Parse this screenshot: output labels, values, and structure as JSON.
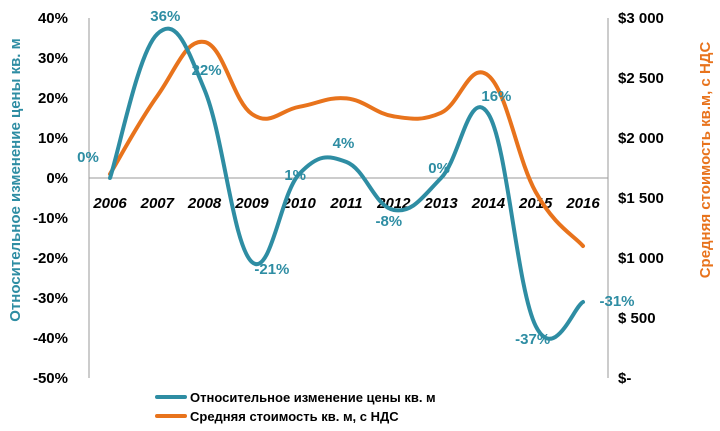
{
  "chart_data": {
    "type": "line",
    "categories": [
      "2006",
      "2007",
      "2008",
      "2009",
      "2010",
      "2011",
      "2012",
      "2013",
      "2014",
      "2015",
      "2016"
    ],
    "series": [
      {
        "name": "Относительное изменение цены кв. м",
        "axis": "left",
        "color": "#2e8da3",
        "values": [
          0,
          36,
          22,
          -21,
          1,
          4,
          -8,
          0,
          16,
          -37,
          -31
        ],
        "labels": [
          "0%",
          "36%",
          "22%",
          "-21%",
          "1%",
          "4%",
          "-8%",
          "0%",
          "16%",
          "-37%",
          "-31%"
        ]
      },
      {
        "name": "Средняя стоимость кв. м, с НДС",
        "axis": "right",
        "color": "#e8731c",
        "values": [
          1700,
          2350,
          2800,
          2200,
          2260,
          2330,
          2180,
          2210,
          2520,
          1550,
          1100
        ]
      }
    ],
    "y_left": {
      "label": "Относительное изменение цены кв. м",
      "range": [
        -50,
        40
      ],
      "tick_labels": [
        "40%",
        "30%",
        "20%",
        "10%",
        "0%",
        "-10%",
        "-20%",
        "-30%",
        "-40%",
        "-50%"
      ]
    },
    "y_right": {
      "label": "Средняя стоимость кв.м, с НДС",
      "range": [
        0,
        3000
      ],
      "tick_labels": [
        "$3 000",
        "$2 500",
        "$2 000",
        "$1 500",
        "$1 000",
        "$ 500",
        "$-"
      ]
    },
    "legend_position": "bottom",
    "grid": false
  },
  "colors": {
    "series_teal": "#2e8da3",
    "series_orange": "#e8731c"
  }
}
